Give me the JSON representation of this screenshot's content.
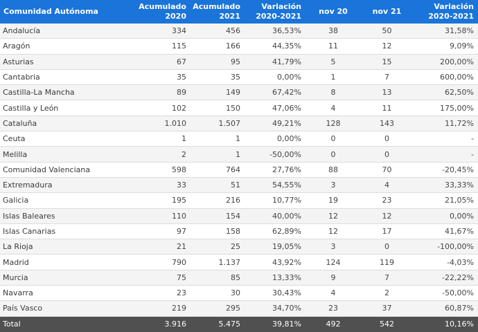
{
  "header": {
    "col0": "Comunidad Autónoma",
    "col1": [
      "Acumulado",
      "2020"
    ],
    "col2": [
      "Acumulado",
      "2021"
    ],
    "col3": [
      "Variación",
      "2020-2021"
    ],
    "col4": "nov 20",
    "col5": "nov 21",
    "col6": [
      "Variación",
      "2020-2021"
    ]
  },
  "rows": [
    [
      "Andalucía",
      "334",
      "456",
      "36,53%",
      "38",
      "50",
      "31,58%"
    ],
    [
      "Aragón",
      "115",
      "166",
      "44,35%",
      "11",
      "12",
      "9,09%"
    ],
    [
      "Asturias",
      "67",
      "95",
      "41,79%",
      "5",
      "15",
      "200,00%"
    ],
    [
      "Cantabria",
      "35",
      "35",
      "0,00%",
      "1",
      "7",
      "600,00%"
    ],
    [
      "Castilla-La Mancha",
      "89",
      "149",
      "67,42%",
      "8",
      "13",
      "62,50%"
    ],
    [
      "Castilla y León",
      "102",
      "150",
      "47,06%",
      "4",
      "11",
      "175,00%"
    ],
    [
      "Cataluña",
      "1.010",
      "1.507",
      "49,21%",
      "128",
      "143",
      "11,72%"
    ],
    [
      "Ceuta",
      "1",
      "1",
      "0,00%",
      "0",
      "0",
      "-"
    ],
    [
      "Melilla",
      "2",
      "1",
      "-50,00%",
      "0",
      "0",
      "-"
    ],
    [
      "Comunidad Valenciana",
      "598",
      "764",
      "27,76%",
      "88",
      "70",
      "-20,45%"
    ],
    [
      "Extremadura",
      "33",
      "51",
      "54,55%",
      "3",
      "4",
      "33,33%"
    ],
    [
      "Galicia",
      "195",
      "216",
      "10,77%",
      "19",
      "23",
      "21,05%"
    ],
    [
      "Islas Baleares",
      "110",
      "154",
      "40,00%",
      "12",
      "12",
      "0,00%"
    ],
    [
      "Islas Canarias",
      "97",
      "158",
      "62,89%",
      "12",
      "17",
      "41,67%"
    ],
    [
      "La Rioja",
      "21",
      "25",
      "19,05%",
      "3",
      "0",
      "-100,00%"
    ],
    [
      "Madrid",
      "790",
      "1.137",
      "43,92%",
      "124",
      "119",
      "-4,03%"
    ],
    [
      "Murcia",
      "75",
      "85",
      "13,33%",
      "9",
      "7",
      "-22,22%"
    ],
    [
      "Navarra",
      "23",
      "30",
      "30,43%",
      "4",
      "2",
      "-50,00%"
    ],
    [
      "País Vasco",
      "219",
      "295",
      "34,70%",
      "23",
      "37",
      "60,87%"
    ]
  ],
  "total": [
    "Total",
    "3.916",
    "5.475",
    "39,81%",
    "492",
    "542",
    "10,16%"
  ]
}
